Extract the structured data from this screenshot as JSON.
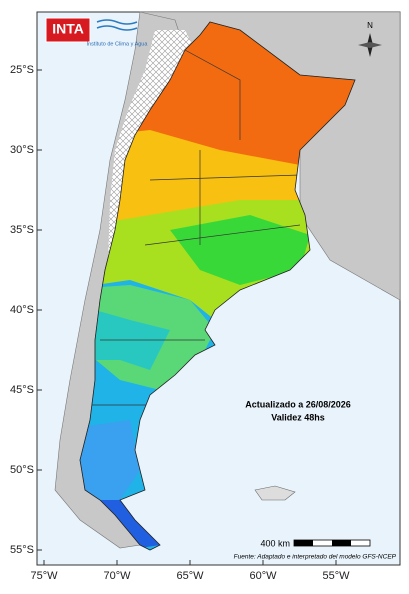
{
  "header": {
    "logo": "INTA",
    "institute": "Instituto de Clima y Agua"
  },
  "map": {
    "lat_labels": [
      "25°S",
      "30°S",
      "35°S",
      "40°S",
      "45°S",
      "50°S",
      "55°S"
    ],
    "lon_labels": [
      "75°W",
      "70°W",
      "65°W",
      "60°W",
      "55°W"
    ],
    "north": "N",
    "updated": "Actualizado a 26/08/2026",
    "validity": "Validez 48hs",
    "scale": "400 km",
    "source": "Fuente: Adaptado e interpretado del modelo GFS-NCEP"
  }
}
